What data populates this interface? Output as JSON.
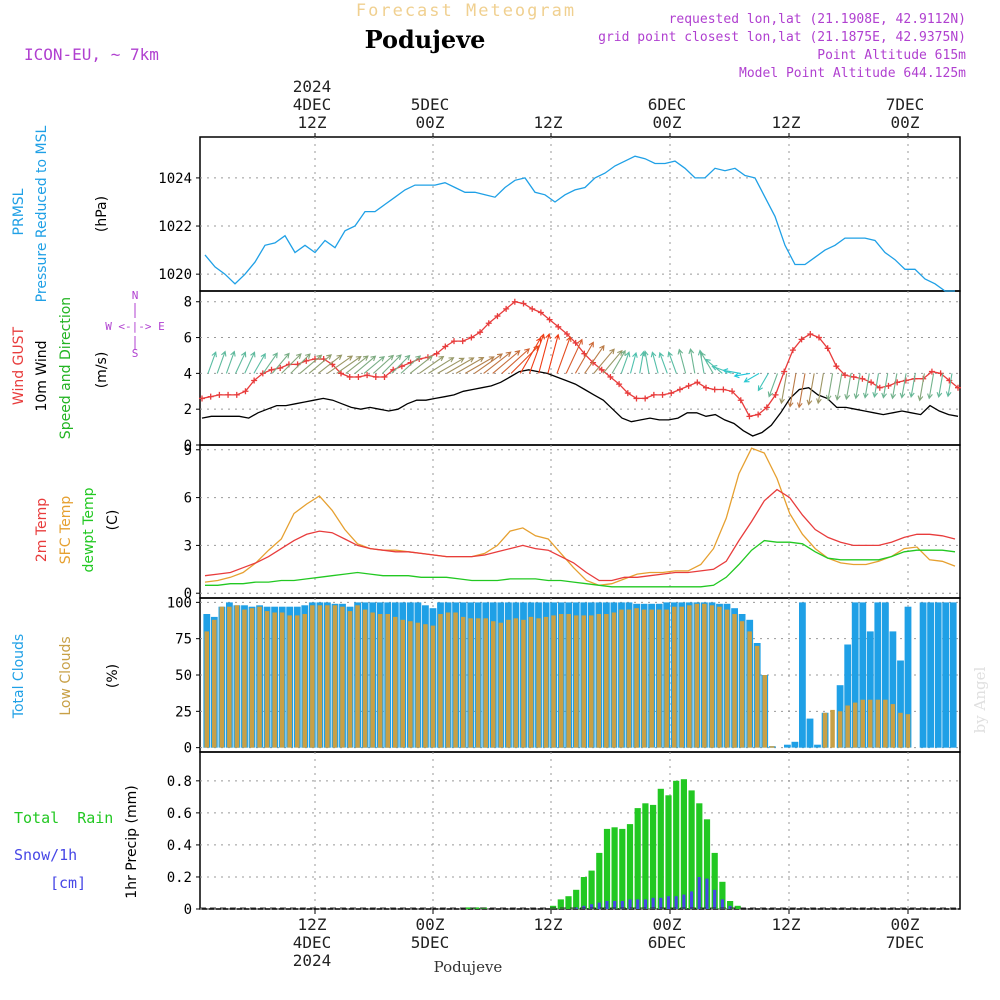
{
  "header": {
    "title": "Forecast Meteogram",
    "location": "Podujeve",
    "model": "ICON-EU, ~ 7km",
    "requested": "requested lon,lat (21.1908E, 42.9112N)",
    "grid_point": "grid point closest lon,lat (21.1875E, 42.9375N)",
    "point_altitude": "Point Altitude 615m",
    "model_altitude": "Model Point Altitude 644.125m",
    "footer_location": "Podujeve",
    "watermark": "by Angel"
  },
  "colors": {
    "pressure": "#1fa0e6",
    "gust": "#e83c3c",
    "wind": "#000000",
    "direction": "#22b422",
    "temp2m": "#e83c3c",
    "sfc": "#e6a030",
    "dewpt": "#22c822",
    "total_clouds": "#1fa0e6",
    "low_clouds": "#c8a046",
    "rain": "#22c822",
    "snow": "#4646e6",
    "header_purple": "#b040d0"
  },
  "chart_data": [
    {
      "id": "pressure",
      "type": "line",
      "title": "PRMSL Pressure Reduced to MSL",
      "label1": "PRMSL",
      "label2": "Pressure Reduced to MSL",
      "ylabel": "(hPa)",
      "ylim": [
        1019.3,
        1025.7
      ],
      "yticks": [
        "1020",
        "1022",
        "1024"
      ],
      "ytick_values": [
        1020,
        1022,
        1024
      ],
      "x": [
        0,
        1,
        2,
        3,
        4,
        5,
        6,
        7,
        8,
        9,
        10,
        11,
        12,
        13,
        14,
        15,
        16,
        17,
        18,
        19,
        20,
        21,
        22,
        23,
        24,
        25,
        26,
        27,
        28,
        29,
        30,
        31,
        32,
        33,
        34,
        35,
        36,
        37,
        38,
        39,
        40,
        41,
        42,
        43,
        44,
        45,
        46,
        47,
        48,
        49,
        50,
        51,
        52,
        53,
        54,
        55,
        56,
        57,
        58,
        59,
        60,
        61,
        62,
        63
      ],
      "series": [
        {
          "name": "PRMSL",
          "values": [
            1020.8,
            1020.3,
            1020.0,
            1019.6,
            1020.0,
            1020.5,
            1021.2,
            1021.3,
            1021.6,
            1020.9,
            1021.2,
            1020.9,
            1021.4,
            1021.1,
            1021.8,
            1022.0,
            1022.6,
            1022.6,
            1022.9,
            1023.2,
            1023.5,
            1023.7,
            1023.7,
            1023.7,
            1023.8,
            1023.6,
            1023.4,
            1023.4,
            1023.3,
            1023.2,
            1023.6,
            1023.9,
            1024.0,
            1023.4,
            1023.3,
            1023.0,
            1023.3,
            1023.5,
            1023.6,
            1024.0,
            1024.2,
            1024.5,
            1024.7,
            1024.9,
            1024.8,
            1024.6,
            1024.6,
            1024.7,
            1024.4,
            1024.0,
            1024.0,
            1024.4,
            1024.3,
            1024.4,
            1024.1,
            1024.0,
            1023.2,
            1022.4,
            1021.2,
            1020.4,
            1020.4,
            1020.7,
            1021.0,
            1021.2
          ]
        }
      ],
      "series_tail": [
        1021.5,
        1021.5,
        1021.5,
        1021.4,
        1020.9,
        1020.6,
        1020.2,
        1020.2,
        1019.8,
        1019.6,
        1019.3,
        1019.3
      ]
    },
    {
      "id": "wind",
      "type": "line",
      "label1": "Wind GUST",
      "label2": "10m Wind",
      "label3": "Speed and Direction",
      "ylabel": "(m/s)",
      "compass_ns": "N",
      "compass_we": "W <-|-> E",
      "compass_s": "S",
      "ylim": [
        0,
        8.6
      ],
      "yticks": [
        "0",
        "2",
        "4",
        "6",
        "8"
      ],
      "ytick_values": [
        0,
        2,
        4,
        6,
        8
      ],
      "gust": [
        2.6,
        2.7,
        2.8,
        2.8,
        2.8,
        3.0,
        3.6,
        4.0,
        4.2,
        4.3,
        4.5,
        4.5,
        4.7,
        4.8,
        4.8,
        4.5,
        4.0,
        3.8,
        3.8,
        3.9,
        3.8,
        3.8,
        4.2,
        4.4,
        4.6,
        4.8,
        4.9,
        5.1,
        5.5,
        5.8,
        5.8,
        6.0,
        6.3,
        6.8,
        7.2,
        7.6,
        8.0,
        7.9,
        7.6,
        7.4,
        7.0,
        6.6,
        6.2,
        5.7,
        5.1,
        4.6,
        4.2,
        3.8,
        3.4,
        2.9,
        2.6,
        2.6,
        2.8,
        2.8,
        2.9,
        3.1,
        3.3,
        3.5,
        3.2,
        3.1,
        3.1,
        3.0,
        2.5,
        1.6,
        1.7,
        2.1,
        2.8,
        4.1,
        5.3,
        5.9,
        6.2,
        6.0,
        5.4,
        4.4,
        3.9,
        3.8,
        3.7,
        3.5,
        3.2,
        3.3,
        3.5,
        3.6,
        3.7,
        3.7,
        4.1,
        4.0,
        3.6,
        3.2
      ],
      "wind10m": [
        1.5,
        1.6,
        1.6,
        1.6,
        1.6,
        1.5,
        1.8,
        2.0,
        2.2,
        2.2,
        2.3,
        2.4,
        2.5,
        2.6,
        2.5,
        2.3,
        2.1,
        2.0,
        2.1,
        2.0,
        1.9,
        2.0,
        2.3,
        2.5,
        2.5,
        2.6,
        2.7,
        2.8,
        3.0,
        3.1,
        3.2,
        3.3,
        3.5,
        3.8,
        4.1,
        4.2,
        4.1,
        4.0,
        3.8,
        3.6,
        3.4,
        3.1,
        2.8,
        2.5,
        2.0,
        1.5,
        1.3,
        1.4,
        1.5,
        1.4,
        1.4,
        1.5,
        1.8,
        1.8,
        1.6,
        1.7,
        1.4,
        1.2,
        0.8,
        0.5,
        0.7,
        1.1,
        1.8,
        2.6,
        3.1,
        3.2,
        2.8,
        2.6,
        2.1,
        2.1,
        2.0,
        1.9,
        1.8,
        1.7,
        1.8,
        1.9,
        1.8,
        1.7,
        2.2,
        1.9,
        1.7,
        1.6
      ],
      "direction_deg": [
        200,
        200,
        200,
        205,
        205,
        210,
        215,
        220,
        225,
        225,
        230,
        230,
        232,
        235,
        235,
        232,
        230,
        230,
        228,
        225,
        225,
        228,
        232,
        235,
        238,
        240,
        240,
        240,
        240,
        235,
        232,
        230,
        228,
        225,
        210,
        200,
        195,
        195,
        200,
        205,
        210,
        215,
        220,
        220,
        210,
        200,
        195,
        190,
        170,
        165,
        160,
        160,
        165,
        170,
        170,
        150,
        130,
        110,
        100,
        80,
        60,
        30,
        20,
        10,
        10,
        10,
        10,
        10,
        10,
        10,
        10,
        10,
        10,
        10,
        10,
        10,
        10,
        10,
        10,
        10,
        10,
        10
      ]
    },
    {
      "id": "temperature",
      "type": "line",
      "label1": "2m Temp",
      "label2": "SFC Temp",
      "label3": "dewpt Temp",
      "ylabel": "(C)",
      "ylim": [
        -0.3,
        9.3
      ],
      "yticks": [
        "0",
        "3",
        "6",
        "9"
      ],
      "ytick_values": [
        0,
        3,
        6,
        9
      ],
      "temp2m": [
        1.1,
        1.2,
        1.3,
        1.6,
        1.9,
        2.3,
        2.8,
        3.3,
        3.7,
        3.9,
        3.8,
        3.4,
        3.0,
        2.8,
        2.7,
        2.6,
        2.6,
        2.5,
        2.4,
        2.3,
        2.3,
        2.3,
        2.4,
        2.6,
        2.8,
        3.0,
        2.8,
        2.7,
        2.3,
        1.9,
        1.3,
        0.8,
        0.8,
        1.0,
        1.0,
        1.1,
        1.2,
        1.3,
        1.3,
        1.4,
        1.5,
        2.0,
        3.3,
        4.5,
        5.8,
        6.5,
        6.0,
        4.9,
        4.0,
        3.5,
        3.2,
        3.0,
        3.0,
        3.0,
        3.2,
        3.5,
        3.7,
        3.7,
        3.6,
        3.4
      ],
      "sfc": [
        0.7,
        0.8,
        1.0,
        1.3,
        1.9,
        2.7,
        3.4,
        5.0,
        5.6,
        6.1,
        5.2,
        4.0,
        3.1,
        2.8,
        2.7,
        2.7,
        2.6,
        2.5,
        2.4,
        2.3,
        2.3,
        2.3,
        2.5,
        3.0,
        3.9,
        4.1,
        3.6,
        3.4,
        2.5,
        1.6,
        0.8,
        0.5,
        0.6,
        0.9,
        1.2,
        1.3,
        1.3,
        1.4,
        1.4,
        1.8,
        2.8,
        4.7,
        7.5,
        9.1,
        8.8,
        7.2,
        5.0,
        3.7,
        2.8,
        2.2,
        1.9,
        1.8,
        1.8,
        2.0,
        2.3,
        2.8,
        2.9,
        2.1,
        2.0,
        1.7
      ],
      "dewpt": [
        0.5,
        0.5,
        0.6,
        0.6,
        0.7,
        0.7,
        0.8,
        0.8,
        0.9,
        1.0,
        1.1,
        1.2,
        1.3,
        1.2,
        1.1,
        1.1,
        1.1,
        1.0,
        1.0,
        1.0,
        0.9,
        0.8,
        0.8,
        0.8,
        0.9,
        0.9,
        0.9,
        0.8,
        0.8,
        0.7,
        0.6,
        0.5,
        0.4,
        0.4,
        0.4,
        0.4,
        0.4,
        0.4,
        0.4,
        0.4,
        0.5,
        1.0,
        1.8,
        2.7,
        3.3,
        3.2,
        3.2,
        3.1,
        2.6,
        2.2,
        2.1,
        2.1,
        2.1,
        2.1,
        2.3,
        2.6,
        2.7,
        2.7,
        2.7,
        2.6
      ]
    },
    {
      "id": "clouds",
      "type": "bar",
      "label1": "Total Clouds",
      "label2": "Low Clouds",
      "ylabel": "(%)",
      "ylim": [
        -3,
        103
      ],
      "yticks": [
        "0",
        "25",
        "50",
        "75",
        "100"
      ],
      "ytick_values": [
        0,
        25,
        50,
        75,
        100
      ],
      "total": [
        92,
        90,
        97,
        100,
        98,
        98,
        97,
        98,
        97,
        97,
        97,
        97,
        97,
        98,
        100,
        100,
        100,
        99,
        99,
        97,
        100,
        100,
        100,
        100,
        100,
        100,
        100,
        100,
        100,
        98,
        96,
        100,
        100,
        100,
        100,
        100,
        100,
        100,
        100,
        100,
        100,
        100,
        100,
        100,
        100,
        100,
        100,
        100,
        100,
        100,
        100,
        100,
        100,
        100,
        100,
        100,
        100,
        99,
        99,
        99,
        99,
        100,
        100,
        100,
        100,
        100,
        100,
        100,
        99,
        99,
        96,
        92,
        88,
        72,
        50,
        1,
        0,
        2,
        4,
        100,
        20,
        2,
        24,
        0,
        43,
        71,
        100,
        100,
        80,
        100,
        100,
        80,
        60,
        97,
        0,
        100,
        100,
        100,
        100,
        100
      ],
      "low": [
        80,
        88,
        97,
        97,
        98,
        95,
        96,
        97,
        94,
        93,
        93,
        91,
        91,
        92,
        98,
        98,
        98,
        98,
        97,
        94,
        98,
        95,
        93,
        92,
        92,
        90,
        88,
        87,
        86,
        85,
        84,
        92,
        93,
        93,
        90,
        89,
        89,
        89,
        87,
        86,
        88,
        89,
        88,
        90,
        89,
        90,
        91,
        92,
        92,
        91,
        91,
        91,
        92,
        92,
        93,
        95,
        95,
        96,
        95,
        95,
        95,
        95,
        97,
        97,
        98,
        99,
        99,
        98,
        97,
        95,
        92,
        87,
        80,
        70,
        50,
        1,
        0,
        0,
        0,
        0,
        0,
        0,
        24,
        26,
        25,
        29,
        31,
        33,
        33,
        33,
        33,
        30,
        24,
        23,
        0,
        0,
        0,
        0,
        0,
        0
      ]
    },
    {
      "id": "precip",
      "type": "bar",
      "label1": "Total  Rain",
      "label2": "Snow/1h",
      "label3": "[cm]",
      "ylabel": "1hr Precip (mm)",
      "ylim": [
        0,
        0.98
      ],
      "yticks": [
        "0",
        "0.2",
        "0.4",
        "0.6",
        "0.8"
      ],
      "ytick_values": [
        0,
        0.2,
        0.4,
        0.6,
        0.8
      ],
      "rain": [
        0,
        0,
        0,
        0,
        0,
        0,
        0,
        0,
        0,
        0,
        0,
        0,
        0,
        0,
        0,
        0,
        0,
        0,
        0,
        0,
        0,
        0,
        0,
        0,
        0,
        0,
        0,
        0,
        0,
        0,
        0,
        0,
        0,
        0,
        0.01,
        0.01,
        0.01,
        0,
        0,
        0,
        0,
        0,
        0,
        0,
        0,
        0.02,
        0.06,
        0.08,
        0.12,
        0.2,
        0.24,
        0.35,
        0.5,
        0.51,
        0.5,
        0.53,
        0.63,
        0.66,
        0.65,
        0.75,
        0.71,
        0.8,
        0.81,
        0.74,
        0.66,
        0.56,
        0.35,
        0.17,
        0.05,
        0.02,
        0,
        0,
        0,
        0,
        0,
        0,
        0,
        0,
        0,
        0,
        0,
        0,
        0,
        0,
        0,
        0,
        0,
        0,
        0,
        0,
        0,
        0,
        0,
        0,
        0,
        0,
        0,
        0
      ],
      "snow": [
        0,
        0,
        0,
        0,
        0,
        0,
        0,
        0,
        0,
        0,
        0,
        0,
        0,
        0,
        0,
        0,
        0,
        0,
        0,
        0,
        0,
        0,
        0,
        0,
        0,
        0,
        0,
        0,
        0,
        0,
        0,
        0,
        0,
        0,
        0,
        0,
        0,
        0,
        0,
        0,
        0,
        0,
        0,
        0,
        0,
        0,
        0,
        0,
        0.01,
        0.02,
        0.03,
        0.04,
        0.05,
        0.05,
        0.05,
        0.06,
        0.06,
        0.06,
        0.07,
        0.07,
        0.08,
        0.08,
        0.09,
        0.11,
        0.2,
        0.19,
        0.12,
        0.06,
        0.02,
        0,
        0,
        0,
        0,
        0,
        0,
        0,
        0,
        0,
        0,
        0,
        0,
        0,
        0,
        0,
        0,
        0,
        0,
        0,
        0,
        0,
        0,
        0,
        0,
        0,
        0,
        0,
        0,
        0,
        0,
        0
      ]
    }
  ],
  "axis": {
    "top_ticks": [
      {
        "line1": "2024",
        "line2": "4DEC",
        "line3": "12Z"
      },
      {
        "line1": "",
        "line2": "5DEC",
        "line3": "00Z"
      },
      {
        "line1": "",
        "line2": "",
        "line3": "12Z"
      },
      {
        "line1": "",
        "line2": "6DEC",
        "line3": "00Z"
      },
      {
        "line1": "",
        "line2": "",
        "line3": "12Z"
      },
      {
        "line1": "",
        "line2": "7DEC",
        "line3": "00Z"
      }
    ],
    "bottom_ticks": [
      {
        "line1": "12Z",
        "line2": "4DEC",
        "line3": "2024"
      },
      {
        "line1": "00Z",
        "line2": "5DEC",
        "line3": ""
      },
      {
        "line1": "12Z",
        "line2": "",
        "line3": ""
      },
      {
        "line1": "00Z",
        "line2": "6DEC",
        "line3": ""
      },
      {
        "line1": "12Z",
        "line2": "",
        "line3": ""
      },
      {
        "line1": "00Z",
        "line2": "7DEC",
        "line3": ""
      }
    ]
  }
}
